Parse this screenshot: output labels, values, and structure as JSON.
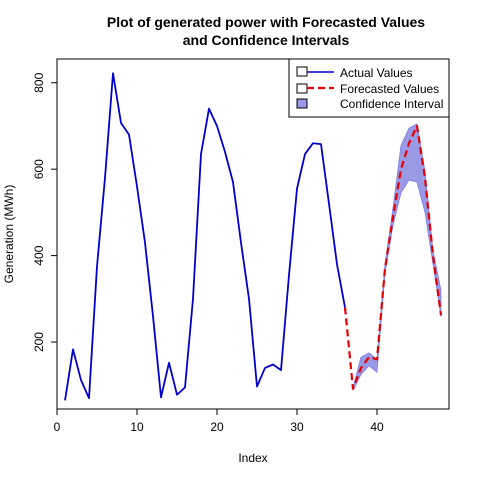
{
  "chart_data": {
    "type": "line",
    "title_line1": "Plot of generated power with Forecasted Values",
    "title_line2": "and Confidence Intervals",
    "xlabel": "Index",
    "ylabel": "Generation (MWh)",
    "xlim": [
      0,
      49
    ],
    "ylim": [
      45,
      855
    ],
    "x_ticks": [
      0,
      10,
      20,
      30,
      40
    ],
    "y_ticks": [
      200,
      400,
      600,
      800
    ],
    "legend_position": "top-right",
    "legend": {
      "actual": "Actual Values",
      "forecast": "Forecasted Values",
      "ci": "Confidence Interval"
    },
    "colors": {
      "actual": "#0000cc",
      "forecast": "#e60000",
      "ci_fill": "#9999e6",
      "ci_edge": "#7f7fe6"
    },
    "series": {
      "actual": {
        "x": [
          1,
          2,
          3,
          4,
          5,
          6,
          7,
          8,
          9,
          10,
          11,
          12,
          13,
          14,
          15,
          16,
          17,
          18,
          19,
          20,
          21,
          22,
          23,
          24,
          25,
          26,
          27,
          28,
          29,
          30,
          31,
          32,
          33,
          34,
          35,
          36
        ],
        "y": [
          65,
          183,
          112,
          70,
          375,
          580,
          822,
          707,
          680,
          560,
          430,
          260,
          72,
          152,
          78,
          95,
          300,
          635,
          740,
          700,
          640,
          570,
          430,
          300,
          97,
          140,
          148,
          135,
          355,
          555,
          635,
          660,
          658,
          520,
          380,
          280
        ]
      },
      "forecast": {
        "x": [
          36,
          37,
          38,
          39,
          40,
          41,
          42,
          43,
          44,
          45,
          46,
          47,
          48
        ],
        "y": [
          280,
          92,
          140,
          165,
          160,
          370,
          490,
          600,
          660,
          700,
          580,
          400,
          262
        ]
      },
      "confidence": {
        "x": [
          37,
          38,
          39,
          40,
          41,
          42,
          43,
          44,
          45,
          46,
          47,
          48
        ],
        "lower": [
          88,
          125,
          145,
          130,
          360,
          470,
          545,
          575,
          570,
          500,
          380,
          258
        ],
        "upper": [
          95,
          165,
          175,
          160,
          380,
          510,
          655,
          695,
          705,
          595,
          410,
          320
        ]
      }
    }
  }
}
